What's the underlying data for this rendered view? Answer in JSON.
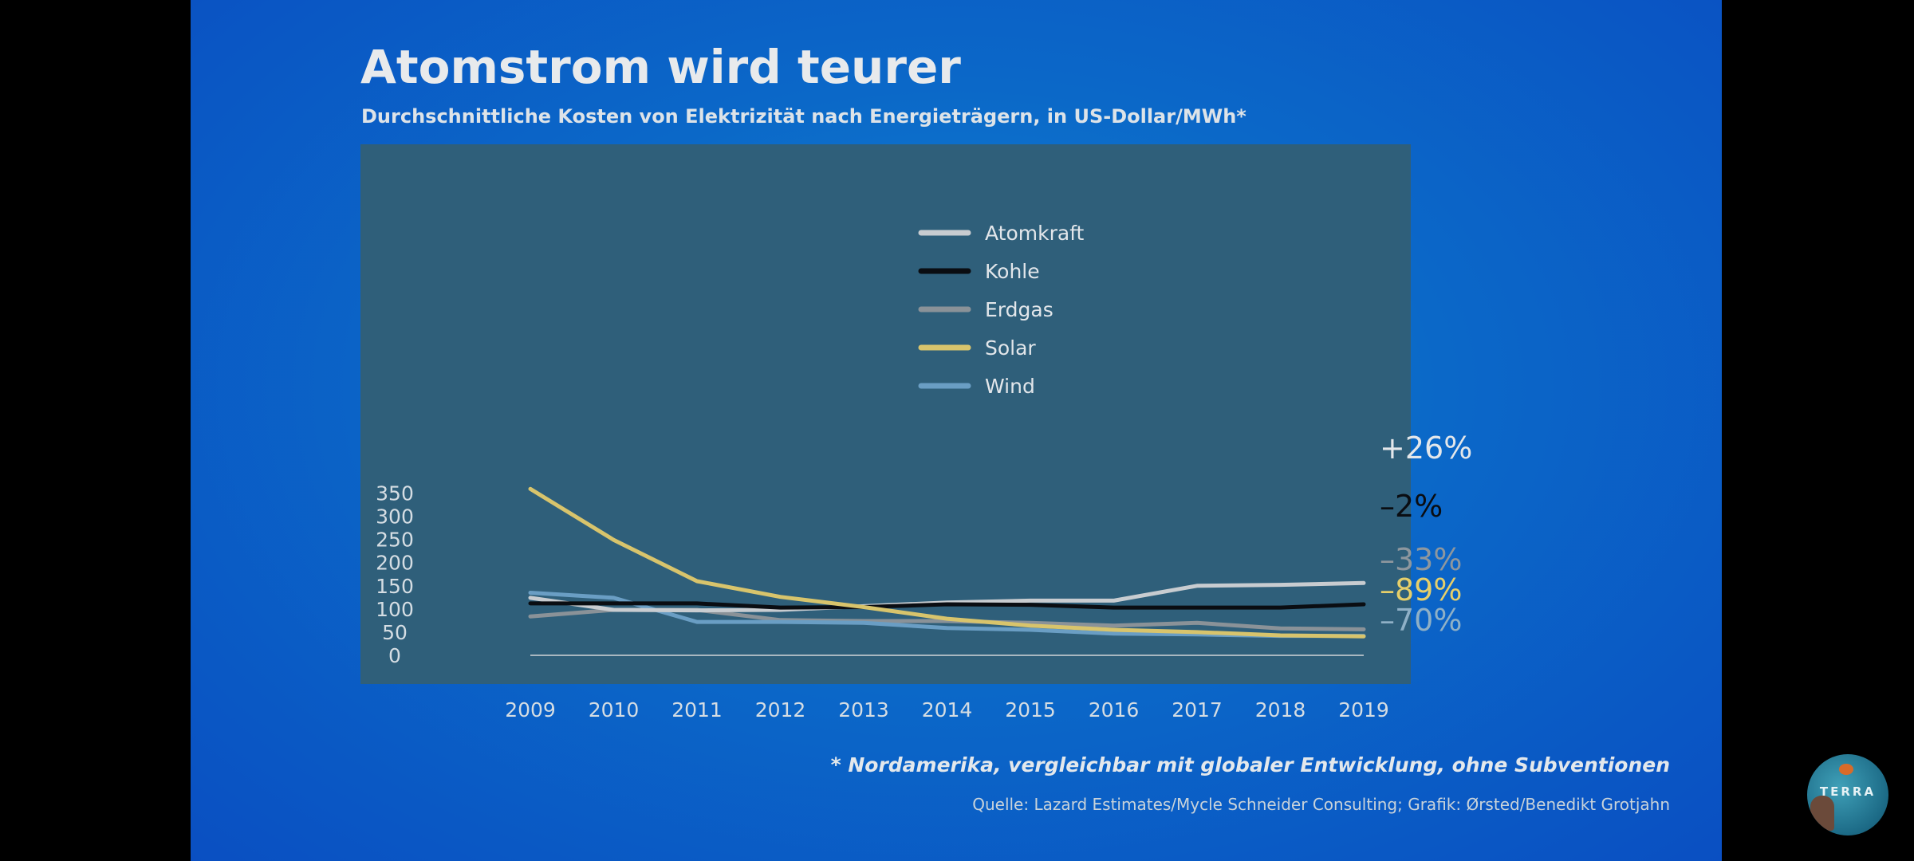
{
  "title": "Atomstrom wird teurer",
  "subtitle": "Durchschnittliche Kosten von Elektrizität nach Energieträgern, in US-Dollar/MWh*",
  "footnote": "* Nordamerika, vergleichbar mit globaler Entwicklung, ohne Subventionen",
  "source": "Quelle: Lazard Estimates/Mycle Schneider Consulting; Grafik: Ørsted/Benedikt Grotjahn",
  "logo": {
    "text": "TERRA",
    "icon": "terra-channel-logo"
  },
  "colors": {
    "slide_background": "#0b68c8",
    "plot_background": "#2f5f7a",
    "baseline": "#a9b7c0"
  },
  "chart_data": {
    "type": "line",
    "title": "Atomstrom wird teurer",
    "subtitle": "Durchschnittliche Kosten von Elektrizität nach Energieträgern, in US-Dollar/MWh*",
    "xlabel": "",
    "ylabel": "",
    "x": [
      2009,
      2010,
      2011,
      2012,
      2013,
      2014,
      2015,
      2016,
      2017,
      2018,
      2019
    ],
    "x_tick_labels": [
      "2009",
      "2010",
      "2011",
      "2012",
      "2013",
      "2014",
      "2015",
      "2016",
      "2017",
      "2018",
      "2019"
    ],
    "ylim": [
      0,
      360
    ],
    "y_ticks": [
      0,
      50,
      100,
      150,
      200,
      250,
      300,
      350
    ],
    "y_tick_labels": [
      "0",
      "50",
      "100",
      "150",
      "200",
      "250",
      "300",
      "350"
    ],
    "grid": false,
    "legend_position": "top-center",
    "series": [
      {
        "name": "Atomkraft",
        "color": "#c8ccd0",
        "change_label": "+26%",
        "label_color": "#e4e7ea",
        "values": [
          124,
          98,
          97,
          98,
          106,
          114,
          118,
          118,
          150,
          152,
          156
        ]
      },
      {
        "name": "Kohle",
        "color": "#0a0d12",
        "change_label": "–2%",
        "label_color": "#0a0d12",
        "values": [
          112,
          112,
          112,
          103,
          104,
          110,
          109,
          103,
          103,
          103,
          110
        ]
      },
      {
        "name": "Erdgas",
        "color": "#8a9298",
        "change_label": "–33%",
        "label_color": "#8e979e",
        "values": [
          84,
          98,
          98,
          76,
          74,
          74,
          70,
          64,
          70,
          58,
          56
        ]
      },
      {
        "name": "Solar",
        "color": "#d8c46c",
        "change_label": "–89%",
        "label_color": "#e6cf6a",
        "values": [
          359,
          249,
          160,
          126,
          104,
          79,
          64,
          55,
          50,
          43,
          41
        ]
      },
      {
        "name": "Wind",
        "color": "#6a9ec4",
        "change_label": "–70%",
        "label_color": "#8fb0c6",
        "values": [
          135,
          124,
          72,
          72,
          70,
          59,
          55,
          47,
          45,
          42,
          42
        ]
      }
    ]
  }
}
